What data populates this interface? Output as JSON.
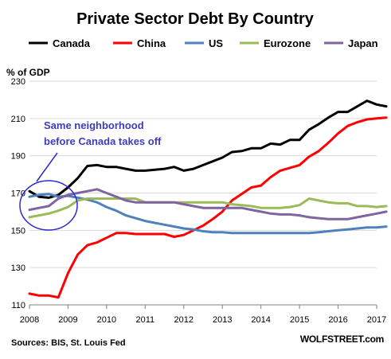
{
  "chart_data": {
    "type": "line",
    "title": "Private Sector Debt By Country",
    "ylabel": "% of GDP",
    "xlabel": "",
    "xlim": [
      2008,
      2017
    ],
    "ylim": [
      110,
      230
    ],
    "x_ticks": [
      "2008",
      "2009",
      "2010",
      "2011",
      "2012",
      "2013",
      "2014",
      "2015",
      "2016",
      "2017"
    ],
    "y_ticks": [
      "110",
      "130",
      "150",
      "170",
      "190",
      "210",
      "230"
    ],
    "grid": "horizontal",
    "legend": "top",
    "series": [
      {
        "name": "Canada",
        "color": "#000000",
        "points": [
          [
            2008.0,
            171
          ],
          [
            2008.25,
            168
          ],
          [
            2008.5,
            167.5
          ],
          [
            2008.75,
            169
          ],
          [
            2009.0,
            173
          ],
          [
            2009.25,
            178
          ],
          [
            2009.5,
            184.5
          ],
          [
            2009.75,
            185
          ],
          [
            2010.0,
            184
          ],
          [
            2010.25,
            184
          ],
          [
            2010.5,
            183
          ],
          [
            2010.75,
            182
          ],
          [
            2011.0,
            182
          ],
          [
            2011.25,
            182.5
          ],
          [
            2011.5,
            183
          ],
          [
            2011.75,
            184
          ],
          [
            2012.0,
            182
          ],
          [
            2012.25,
            183
          ],
          [
            2012.5,
            185
          ],
          [
            2012.75,
            187
          ],
          [
            2013.0,
            189
          ],
          [
            2013.25,
            192
          ],
          [
            2013.5,
            192.5
          ],
          [
            2013.75,
            194
          ],
          [
            2014.0,
            194
          ],
          [
            2014.25,
            196.5
          ],
          [
            2014.5,
            196
          ],
          [
            2014.75,
            198.5
          ],
          [
            2015.0,
            198.5
          ],
          [
            2015.25,
            204
          ],
          [
            2015.5,
            207
          ],
          [
            2015.75,
            210.5
          ],
          [
            2016.0,
            213.5
          ],
          [
            2016.25,
            213.5
          ],
          [
            2016.5,
            216.5
          ],
          [
            2016.75,
            219.5
          ],
          [
            2017.0,
            217.5
          ],
          [
            2017.25,
            216.5
          ]
        ]
      },
      {
        "name": "China",
        "color": "#ff0000",
        "points": [
          [
            2008.0,
            116
          ],
          [
            2008.25,
            115
          ],
          [
            2008.5,
            115
          ],
          [
            2008.75,
            114
          ],
          [
            2009.0,
            127
          ],
          [
            2009.25,
            137
          ],
          [
            2009.5,
            142
          ],
          [
            2009.75,
            143.5
          ],
          [
            2010.0,
            146
          ],
          [
            2010.25,
            148.5
          ],
          [
            2010.5,
            148.5
          ],
          [
            2010.75,
            148
          ],
          [
            2011.0,
            148
          ],
          [
            2011.25,
            148
          ],
          [
            2011.5,
            148
          ],
          [
            2011.75,
            146.5
          ],
          [
            2012.0,
            147.5
          ],
          [
            2012.25,
            150
          ],
          [
            2012.5,
            152.5
          ],
          [
            2012.75,
            156
          ],
          [
            2013.0,
            160
          ],
          [
            2013.25,
            166
          ],
          [
            2013.5,
            169.5
          ],
          [
            2013.75,
            173
          ],
          [
            2014.0,
            174
          ],
          [
            2014.25,
            178.5
          ],
          [
            2014.5,
            182
          ],
          [
            2014.75,
            183.5
          ],
          [
            2015.0,
            185
          ],
          [
            2015.25,
            189.5
          ],
          [
            2015.5,
            192.5
          ],
          [
            2015.75,
            197
          ],
          [
            2016.0,
            202
          ],
          [
            2016.25,
            206
          ],
          [
            2016.5,
            208
          ],
          [
            2016.75,
            209.5
          ],
          [
            2017.0,
            210
          ],
          [
            2017.25,
            210.5
          ]
        ]
      },
      {
        "name": "US",
        "color": "#4f81bd",
        "points": [
          [
            2008.0,
            168
          ],
          [
            2008.25,
            169
          ],
          [
            2008.5,
            169.5
          ],
          [
            2008.75,
            168
          ],
          [
            2009.0,
            168.5
          ],
          [
            2009.25,
            167.5
          ],
          [
            2009.5,
            166.5
          ],
          [
            2009.75,
            165
          ],
          [
            2010.0,
            162.5
          ],
          [
            2010.25,
            160.5
          ],
          [
            2010.5,
            158
          ],
          [
            2010.75,
            156.5
          ],
          [
            2011.0,
            155
          ],
          [
            2011.25,
            154
          ],
          [
            2011.5,
            153
          ],
          [
            2011.75,
            152
          ],
          [
            2012.0,
            151
          ],
          [
            2012.25,
            150.5
          ],
          [
            2012.5,
            149.5
          ],
          [
            2012.75,
            149
          ],
          [
            2013.0,
            149
          ],
          [
            2013.25,
            148.5
          ],
          [
            2013.5,
            148.5
          ],
          [
            2013.75,
            148.5
          ],
          [
            2014.0,
            148.5
          ],
          [
            2014.25,
            148.5
          ],
          [
            2014.5,
            148.5
          ],
          [
            2014.75,
            148.5
          ],
          [
            2015.0,
            148.5
          ],
          [
            2015.25,
            148.5
          ],
          [
            2015.5,
            149
          ],
          [
            2015.75,
            149.5
          ],
          [
            2016.0,
            150
          ],
          [
            2016.25,
            150.5
          ],
          [
            2016.5,
            151
          ],
          [
            2016.75,
            151.5
          ],
          [
            2017.0,
            151.5
          ],
          [
            2017.25,
            152
          ]
        ]
      },
      {
        "name": "Eurozone",
        "color": "#9bbb59",
        "points": [
          [
            2008.0,
            157
          ],
          [
            2008.25,
            158
          ],
          [
            2008.5,
            159
          ],
          [
            2008.75,
            160.5
          ],
          [
            2009.0,
            162.5
          ],
          [
            2009.25,
            166
          ],
          [
            2009.5,
            167
          ],
          [
            2009.75,
            167
          ],
          [
            2010.0,
            167
          ],
          [
            2010.25,
            167
          ],
          [
            2010.5,
            167
          ],
          [
            2010.75,
            167
          ],
          [
            2011.0,
            165
          ],
          [
            2011.25,
            165
          ],
          [
            2011.5,
            165
          ],
          [
            2011.75,
            165
          ],
          [
            2012.0,
            165
          ],
          [
            2012.25,
            165
          ],
          [
            2012.5,
            165
          ],
          [
            2012.75,
            165
          ],
          [
            2013.0,
            165
          ],
          [
            2013.25,
            164
          ],
          [
            2013.5,
            163.5
          ],
          [
            2013.75,
            163
          ],
          [
            2014.0,
            162
          ],
          [
            2014.25,
            162
          ],
          [
            2014.5,
            162
          ],
          [
            2014.75,
            162.5
          ],
          [
            2015.0,
            163.5
          ],
          [
            2015.25,
            167
          ],
          [
            2015.5,
            166
          ],
          [
            2015.75,
            165
          ],
          [
            2016.0,
            164.5
          ],
          [
            2016.25,
            164.5
          ],
          [
            2016.5,
            163
          ],
          [
            2016.75,
            163
          ],
          [
            2017.0,
            162.5
          ],
          [
            2017.25,
            163
          ]
        ]
      },
      {
        "name": "Japan",
        "color": "#8064a2",
        "points": [
          [
            2008.0,
            161
          ],
          [
            2008.25,
            162
          ],
          [
            2008.5,
            163
          ],
          [
            2008.75,
            167
          ],
          [
            2009.0,
            169
          ],
          [
            2009.25,
            170
          ],
          [
            2009.5,
            171
          ],
          [
            2009.75,
            172
          ],
          [
            2010.0,
            170
          ],
          [
            2010.25,
            168
          ],
          [
            2010.5,
            166
          ],
          [
            2010.75,
            165
          ],
          [
            2011.0,
            165
          ],
          [
            2011.25,
            165
          ],
          [
            2011.5,
            165
          ],
          [
            2011.75,
            165
          ],
          [
            2012.0,
            164
          ],
          [
            2012.25,
            163
          ],
          [
            2012.5,
            162
          ],
          [
            2012.75,
            162
          ],
          [
            2013.0,
            162
          ],
          [
            2013.25,
            162
          ],
          [
            2013.5,
            162
          ],
          [
            2013.75,
            161
          ],
          [
            2014.0,
            160
          ],
          [
            2014.25,
            159
          ],
          [
            2014.5,
            158.5
          ],
          [
            2014.75,
            158.5
          ],
          [
            2015.0,
            158
          ],
          [
            2015.25,
            157
          ],
          [
            2015.5,
            156.5
          ],
          [
            2015.75,
            156
          ],
          [
            2016.0,
            156
          ],
          [
            2016.25,
            156
          ],
          [
            2016.5,
            157
          ],
          [
            2016.75,
            158
          ],
          [
            2017.0,
            159
          ],
          [
            2017.25,
            160
          ]
        ]
      }
    ],
    "annotation": {
      "line1": "Same neighborhood",
      "line2": "before Canada takes off"
    },
    "source": "Sources: BIS, St. Louis Fed",
    "brand": "WOLFSTREET.com"
  }
}
